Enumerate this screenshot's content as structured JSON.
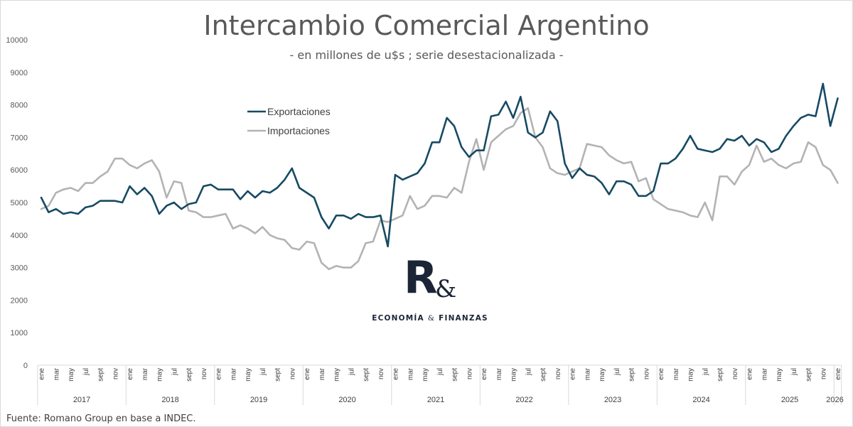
{
  "title": "Intercambio Comercial Argentino",
  "subtitle": "- en millones de u$s ; serie desestacionalizada -",
  "source": "Fuente: Romano Group en base a INDEC.",
  "logo": {
    "mark": "R",
    "amp": "&",
    "word1": "ECONOMÍA",
    "word_amp": "&",
    "word2": "FINANZAS"
  },
  "colors": {
    "exports": "#174a63",
    "imports": "#b3b3b3",
    "grid": "#d9d9d9",
    "text": "#595959"
  },
  "chart_data": {
    "type": "line",
    "title": "Intercambio Comercial Argentino",
    "subtitle": "- en millones de u$s ; serie desestacionalizada -",
    "ylim": [
      0,
      10000
    ],
    "yticks": [
      0,
      1000,
      2000,
      3000,
      4000,
      5000,
      6000,
      7000,
      8000,
      9000,
      10000
    ],
    "grid": false,
    "legend_position": "top-left",
    "month_labels": [
      "ene",
      "",
      "mar",
      "",
      "may",
      "",
      "jul",
      "",
      "sept",
      "",
      "nov",
      ""
    ],
    "years": [
      "2017",
      "2018",
      "2019",
      "2020",
      "2021",
      "2022",
      "2023",
      "2024",
      "2025",
      "2026"
    ],
    "x_start": "2017-01",
    "x_end": "2026-01",
    "series": [
      {
        "name": "Exportaciones",
        "values": [
          5150,
          4700,
          4800,
          4650,
          4700,
          4650,
          4850,
          4900,
          5050,
          5050,
          5050,
          5000,
          5500,
          5250,
          5450,
          5200,
          4650,
          4900,
          5000,
          4800,
          4950,
          5000,
          5500,
          5550,
          5400,
          5400,
          5400,
          5100,
          5350,
          5150,
          5350,
          5300,
          5450,
          5700,
          6050,
          5450,
          5300,
          5150,
          4550,
          4200,
          4600,
          4600,
          4500,
          4650,
          4550,
          4550,
          4600,
          3650,
          5850,
          5700,
          5800,
          5900,
          6200,
          6850,
          6850,
          7600,
          7350,
          6700,
          6400,
          6600,
          6600,
          7650,
          7700,
          8100,
          7600,
          8250,
          7150,
          7000,
          7150,
          7800,
          7500,
          6200,
          5750,
          6050,
          5850,
          5800,
          5600,
          5250,
          5650,
          5650,
          5550,
          5200,
          5200,
          5350,
          6200,
          6200,
          6350,
          6650,
          7050,
          6650,
          6600,
          6550,
          6650,
          6950,
          6900,
          7050,
          6750,
          6950,
          6850,
          6550,
          6650,
          7050,
          7350,
          7600,
          7700,
          7650,
          8650,
          7350,
          8200
        ]
      },
      {
        "name": "Importaciones",
        "values": [
          4800,
          4900,
          5300,
          5400,
          5450,
          5350,
          5600,
          5600,
          5800,
          5950,
          6350,
          6350,
          6150,
          6050,
          6200,
          6300,
          5950,
          5150,
          5650,
          5600,
          4750,
          4700,
          4550,
          4550,
          4600,
          4650,
          4200,
          4300,
          4200,
          4050,
          4250,
          4000,
          3900,
          3850,
          3600,
          3550,
          3800,
          3750,
          3150,
          2950,
          3050,
          3000,
          3000,
          3200,
          3750,
          3800,
          4450,
          4400,
          4500,
          4600,
          5200,
          4800,
          4900,
          5200,
          5200,
          5150,
          5450,
          5300,
          6250,
          6950,
          6000,
          6850,
          7050,
          7250,
          7350,
          7750,
          7900,
          7000,
          6700,
          6050,
          5900,
          5850,
          5950,
          6050,
          6800,
          6750,
          6700,
          6450,
          6300,
          6200,
          6250,
          5650,
          5750,
          5100,
          4950,
          4800,
          4750,
          4700,
          4600,
          4550,
          5000,
          4450,
          5800,
          5800,
          5550,
          5950,
          6150,
          6750,
          6250,
          6350,
          6150,
          6050,
          6200,
          6250,
          6850,
          6700,
          6150,
          6000,
          5600
        ]
      }
    ]
  }
}
